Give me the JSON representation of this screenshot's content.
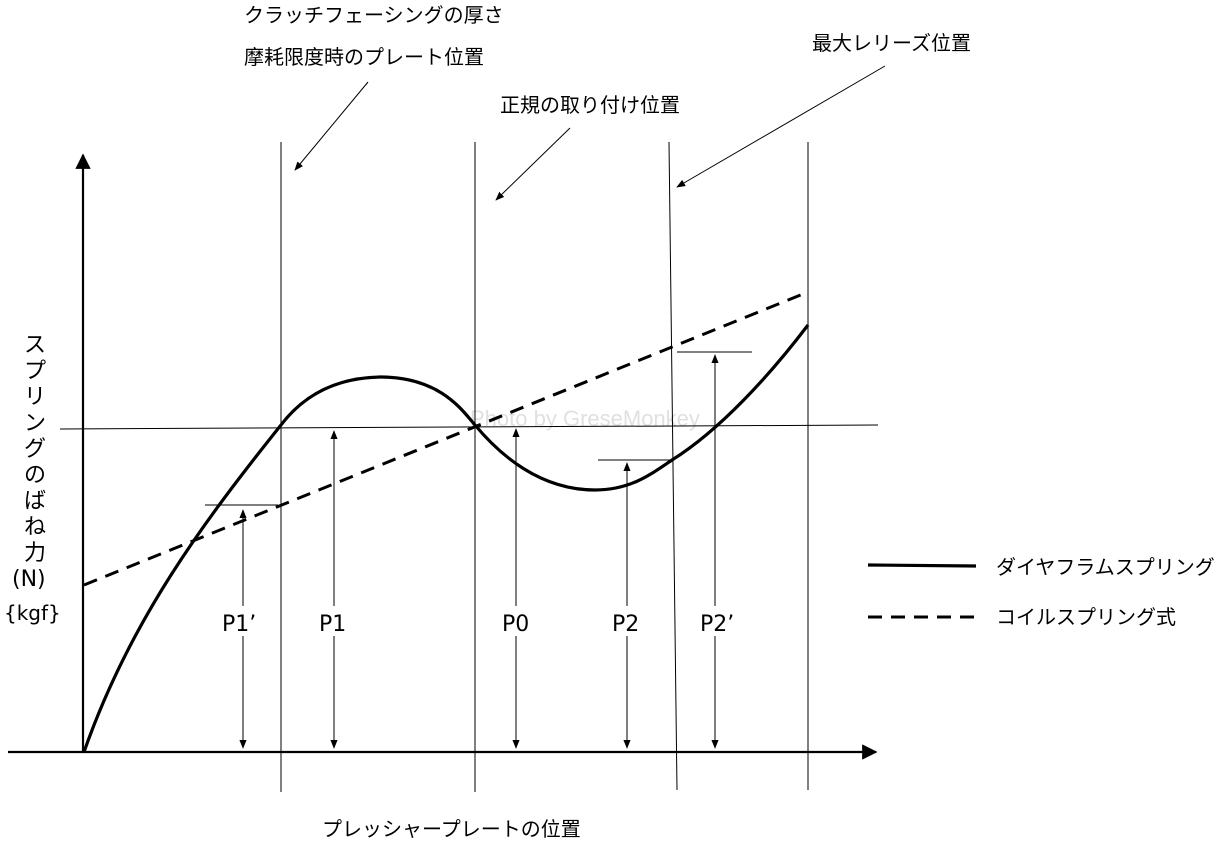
{
  "annotations": {
    "facing_thickness": "クラッチフェーシングの厚さ",
    "wear_limit_plate_position": "摩耗限度時のプレート位置",
    "normal_install_position": "正規の取り付け位置",
    "max_release_position": "最大レリーズ位置"
  },
  "axes": {
    "y_label_chars": [
      "ス",
      "プ",
      "リ",
      "ン",
      "グ",
      "の",
      "ば",
      "ね",
      "力"
    ],
    "y_unit_si": "(N)",
    "y_unit_kgf": "{kgf}",
    "x_label": "プレッシャープレートの位置"
  },
  "points": {
    "p1_prime": "P1’",
    "p1": "P1",
    "p0": "P0",
    "p2": "P2",
    "p2_prime": "P2’"
  },
  "legend": {
    "diaphragm": "ダイヤフラムスプリング",
    "coil": "コイルスプリング式"
  },
  "watermark": "Photo by GreseMonkey",
  "colors": {
    "line": "#000000",
    "background": "#ffffff"
  }
}
